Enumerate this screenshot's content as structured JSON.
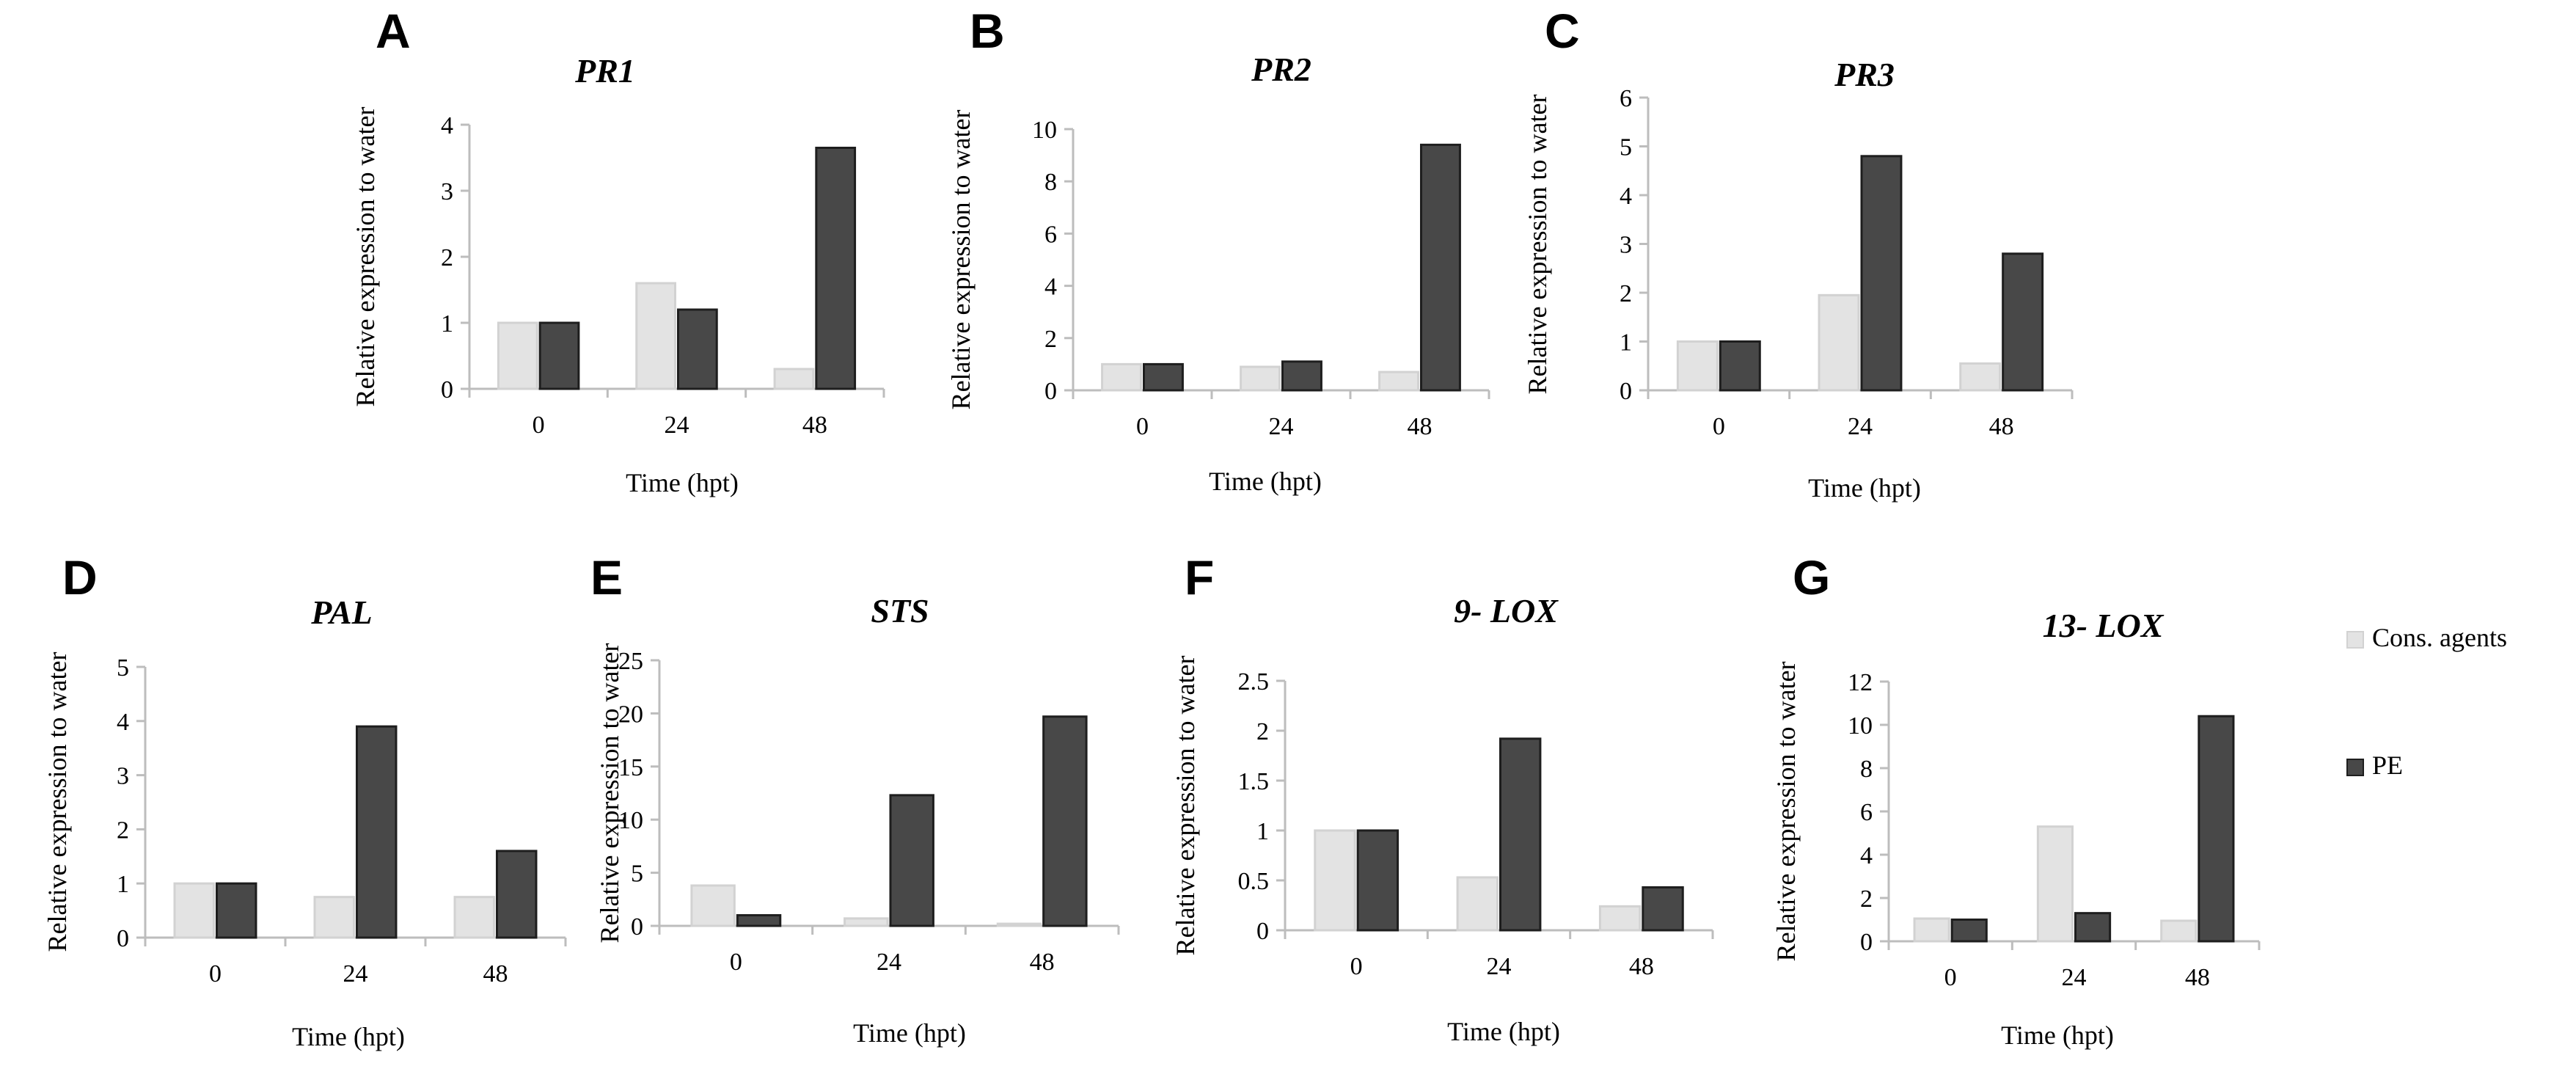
{
  "figure": {
    "legend": [
      {
        "name": "Cons. agents",
        "color": "#e3e3e3"
      },
      {
        "name": "PE",
        "color": "#484848"
      }
    ]
  },
  "chart_data": [
    {
      "panel": "A",
      "type": "bar",
      "title": "PR1",
      "xlabel": "Time (hpt)",
      "ylabel": "Relative expression to water",
      "categories": [
        "0",
        "24",
        "48"
      ],
      "ylim": [
        0,
        4
      ],
      "yticks": [
        0,
        1,
        2,
        3,
        4
      ],
      "series": [
        {
          "name": "Cons. agents",
          "values": [
            1.0,
            1.6,
            0.3
          ]
        },
        {
          "name": "PE",
          "values": [
            1.0,
            1.2,
            3.65
          ]
        }
      ]
    },
    {
      "panel": "B",
      "type": "bar",
      "title": "PR2",
      "xlabel": "Time (hpt)",
      "ylabel": "Relative expression to water",
      "categories": [
        "0",
        "24",
        "48"
      ],
      "ylim": [
        0,
        10
      ],
      "yticks": [
        0,
        2,
        4,
        6,
        8,
        10
      ],
      "series": [
        {
          "name": "Cons. agents",
          "values": [
            1.0,
            0.9,
            0.7
          ]
        },
        {
          "name": "PE",
          "values": [
            1.0,
            1.1,
            9.4
          ]
        }
      ]
    },
    {
      "panel": "C",
      "type": "bar",
      "title": "PR3",
      "xlabel": "Time (hpt)",
      "ylabel": "Relative expression to water",
      "categories": [
        "0",
        "24",
        "48"
      ],
      "ylim": [
        0,
        6
      ],
      "yticks": [
        0,
        1,
        2,
        3,
        4,
        5,
        6
      ],
      "series": [
        {
          "name": "Cons. agents",
          "values": [
            1.0,
            1.95,
            0.55
          ]
        },
        {
          "name": "PE",
          "values": [
            1.0,
            4.8,
            2.8
          ]
        }
      ]
    },
    {
      "panel": "D",
      "type": "bar",
      "title": "PAL",
      "xlabel": "Time (hpt)",
      "ylabel": "Relative expression to water",
      "categories": [
        "0",
        "24",
        "48"
      ],
      "ylim": [
        0,
        5
      ],
      "yticks": [
        0,
        1,
        2,
        3,
        4,
        5
      ],
      "series": [
        {
          "name": "Cons. agents",
          "values": [
            1.0,
            0.75,
            0.75
          ]
        },
        {
          "name": "PE",
          "values": [
            1.0,
            3.9,
            1.6
          ]
        }
      ]
    },
    {
      "panel": "E",
      "type": "bar",
      "title": "STS",
      "xlabel": "Time (hpt)",
      "ylabel": "Relative expression to water",
      "categories": [
        "0",
        "24",
        "48"
      ],
      "ylim": [
        0,
        25
      ],
      "yticks": [
        0,
        5,
        10,
        15,
        20,
        25
      ],
      "series": [
        {
          "name": "Cons. agents",
          "values": [
            3.8,
            0.7,
            0.2
          ]
        },
        {
          "name": "PE",
          "values": [
            1.0,
            12.3,
            19.7
          ]
        }
      ]
    },
    {
      "panel": "F",
      "type": "bar",
      "title": "9- LOX",
      "xlabel": "Time (hpt)",
      "ylabel": "Relative expression to water",
      "categories": [
        "0",
        "24",
        "48"
      ],
      "ylim": [
        0,
        2.5
      ],
      "yticks": [
        0,
        0.5,
        1,
        1.5,
        2,
        2.5
      ],
      "series": [
        {
          "name": "Cons. agents",
          "values": [
            1.0,
            0.53,
            0.24
          ]
        },
        {
          "name": "PE",
          "values": [
            1.0,
            1.92,
            0.43
          ]
        }
      ]
    },
    {
      "panel": "G",
      "type": "bar",
      "title": "13- LOX",
      "xlabel": "Time (hpt)",
      "ylabel": "Relative expression to water",
      "categories": [
        "0",
        "24",
        "48"
      ],
      "ylim": [
        0,
        12
      ],
      "yticks": [
        0,
        2,
        4,
        6,
        8,
        10,
        12
      ],
      "series": [
        {
          "name": "Cons. agents",
          "values": [
            1.05,
            5.3,
            0.95
          ]
        },
        {
          "name": "PE",
          "values": [
            1.0,
            1.3,
            10.4
          ]
        }
      ]
    }
  ]
}
